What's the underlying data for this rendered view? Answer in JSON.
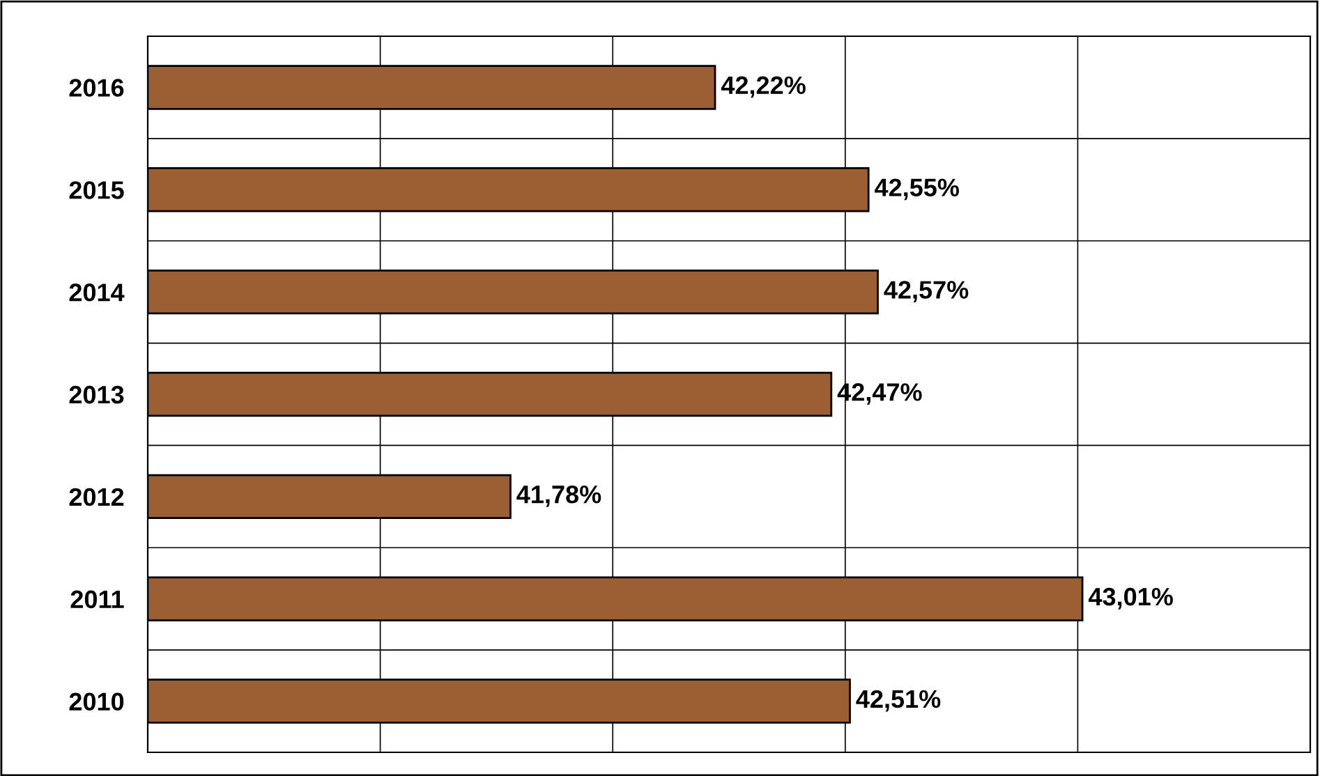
{
  "chart_data": {
    "type": "bar",
    "orientation": "horizontal",
    "categories": [
      "2016",
      "2015",
      "2014",
      "2013",
      "2012",
      "2011",
      "2010"
    ],
    "values": [
      42.22,
      42.55,
      42.57,
      42.47,
      41.78,
      43.01,
      42.51
    ],
    "value_labels": [
      "42,22%",
      "42,55%",
      "42,57%",
      "42,47%",
      "41,78%",
      "43,01%",
      "42,51%"
    ],
    "color": "#9c5f33",
    "xlim": [
      41,
      43.5
    ],
    "xticks": [
      {
        "value": 41,
        "label": null
      },
      {
        "value": 41.5,
        "label": null
      },
      {
        "value": 42,
        "label": null
      },
      {
        "value": 42.5,
        "label": null
      },
      {
        "value": 43,
        "label": null
      },
      {
        "value": 43.5,
        "label": null
      }
    ],
    "tick_labels": "y",
    "grid": true
  }
}
